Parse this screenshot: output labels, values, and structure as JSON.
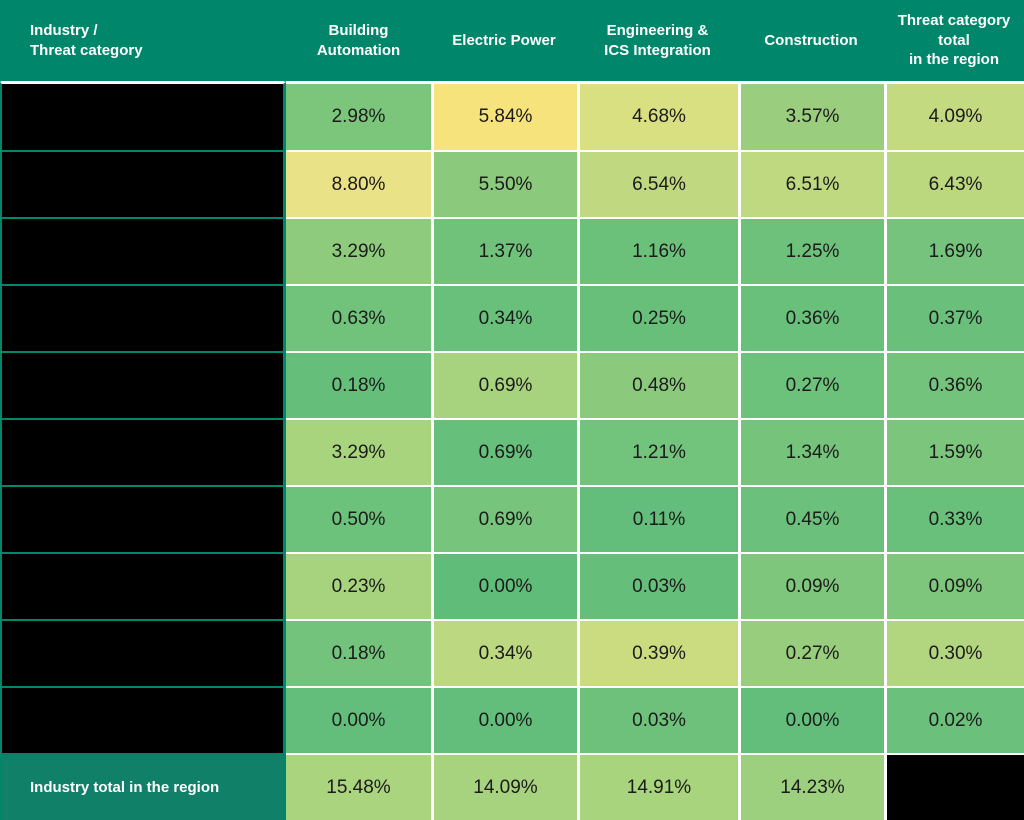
{
  "header": {
    "corner": "Industry /\nThreat category",
    "columns": [
      "Building\nAutomation",
      "Electric Power",
      "Engineering &\nICS Integration",
      "Construction",
      "Threat category\ntotal\nin the region"
    ]
  },
  "table": {
    "row_labels_redacted": true,
    "rows": [
      {
        "category": "",
        "values": [
          "2.98%",
          "5.84%",
          "4.68%",
          "3.57%",
          "4.09%"
        ],
        "colors": [
          "#7CC67C",
          "#F6E37B",
          "#D9E081",
          "#9ACD7E",
          "#C4DA80"
        ]
      },
      {
        "category": "",
        "values": [
          "8.80%",
          "5.50%",
          "6.54%",
          "6.51%",
          "6.43%"
        ],
        "colors": [
          "#E9E287",
          "#8BC97D",
          "#C0D980",
          "#BFD980",
          "#BCD87F"
        ]
      },
      {
        "category": "",
        "values": [
          "3.29%",
          "1.37%",
          "1.16%",
          "1.25%",
          "1.69%"
        ],
        "colors": [
          "#8FCB7D",
          "#70C27B",
          "#6CC17A",
          "#6EC17B",
          "#75C37C"
        ]
      },
      {
        "category": "",
        "values": [
          "0.63%",
          "0.34%",
          "0.25%",
          "0.36%",
          "0.37%"
        ],
        "colors": [
          "#71C27B",
          "#69C07A",
          "#67BF7A",
          "#69C07A",
          "#6AC07B"
        ]
      },
      {
        "category": "",
        "values": [
          "0.18%",
          "0.69%",
          "0.48%",
          "0.27%",
          "0.36%"
        ],
        "colors": [
          "#65BF7A",
          "#A8D37E",
          "#8BC97D",
          "#6CC17B",
          "#74C37C"
        ]
      },
      {
        "category": "",
        "values": [
          "3.29%",
          "0.69%",
          "1.21%",
          "1.34%",
          "1.59%"
        ],
        "colors": [
          "#A9D47E",
          "#66BF7A",
          "#72C37B",
          "#76C47C",
          "#7BC57C"
        ]
      },
      {
        "category": "",
        "values": [
          "0.50%",
          "0.69%",
          "0.11%",
          "0.45%",
          "0.33%"
        ],
        "colors": [
          "#6CC17B",
          "#77C47C",
          "#63BE7B",
          "#6BC17B",
          "#68C07A"
        ]
      },
      {
        "category": "",
        "values": [
          "0.23%",
          "0.00%",
          "0.03%",
          "0.09%",
          "0.09%"
        ],
        "colors": [
          "#A8D37E",
          "#5FBD79",
          "#65BF7A",
          "#7EC67C",
          "#7EC67C"
        ]
      },
      {
        "category": "",
        "values": [
          "0.18%",
          "0.34%",
          "0.39%",
          "0.27%",
          "0.30%"
        ],
        "colors": [
          "#74C37C",
          "#BCD880",
          "#CBDC80",
          "#98CD7E",
          "#B2D57F"
        ]
      },
      {
        "category": "",
        "values": [
          "0.00%",
          "0.00%",
          "0.03%",
          "0.00%",
          "0.02%"
        ],
        "colors": [
          "#63BE7B",
          "#63BE7B",
          "#6DC17B",
          "#63BE7B",
          "#6BC17B"
        ]
      }
    ],
    "total": {
      "label": "Industry total in the region",
      "values": [
        "15.48%",
        "14.09%",
        "14.91%",
        "14.23%"
      ],
      "colors": [
        "#ABD47E",
        "#A7D37E",
        "#A9D47E",
        "#9CCF7E"
      ],
      "grand_total_redacted": true
    }
  },
  "chart_data": {
    "type": "heatmap",
    "unit": "%",
    "columns": [
      "Building Automation",
      "Electric Power",
      "Engineering & ICS Integration",
      "Construction",
      "Threat category total in the region"
    ],
    "row_labels": [
      "",
      "",
      "",
      "",
      "",
      "",
      "",
      "",
      "",
      ""
    ],
    "row_labels_note": "threat category names are blacked out in the image",
    "values": [
      [
        2.98,
        5.84,
        4.68,
        3.57,
        4.09
      ],
      [
        8.8,
        5.5,
        6.54,
        6.51,
        6.43
      ],
      [
        3.29,
        1.37,
        1.16,
        1.25,
        1.69
      ],
      [
        0.63,
        0.34,
        0.25,
        0.36,
        0.37
      ],
      [
        0.18,
        0.69,
        0.48,
        0.27,
        0.36
      ],
      [
        3.29,
        0.69,
        1.21,
        1.34,
        1.59
      ],
      [
        0.5,
        0.69,
        0.11,
        0.45,
        0.33
      ],
      [
        0.23,
        0.0,
        0.03,
        0.09,
        0.09
      ],
      [
        0.18,
        0.34,
        0.39,
        0.27,
        0.3
      ],
      [
        0.0,
        0.0,
        0.03,
        0.0,
        0.02
      ]
    ],
    "totals_row": {
      "label": "Industry total in the region",
      "values": [
        15.48,
        14.09,
        14.91,
        14.23
      ],
      "grand_total": "redacted (blacked out)"
    },
    "legend_position": "none",
    "grid": true,
    "color_scale": {
      "low": "#63BE7B",
      "high": "#FFEB84"
    }
  },
  "colors": {
    "header_bg": "#00876B",
    "total_label_bg": "#108069",
    "redacted_cell": "#000000",
    "gridline": "#FFFFFF",
    "data_text": "#1B1B1B",
    "header_text": "#FFFFFF"
  }
}
